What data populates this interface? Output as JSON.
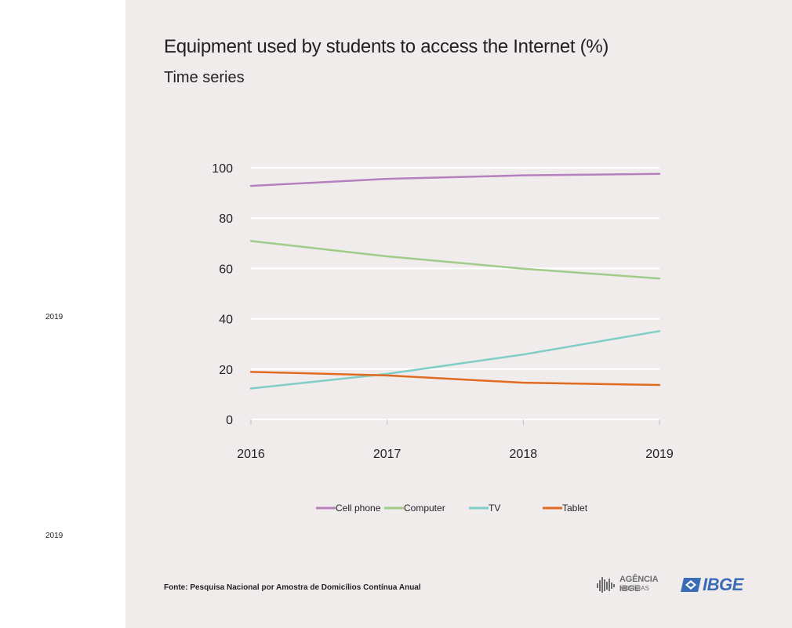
{
  "side_notes": [
    "2019",
    "2019"
  ],
  "chart_data": {
    "type": "line",
    "title": "Equipment used by students to access the Internet (%)",
    "subtitle": "Time series",
    "x": [
      "2016",
      "2017",
      "2018",
      "2019"
    ],
    "ylim": [
      0,
      100
    ],
    "yticks": [
      0,
      20,
      40,
      60,
      80,
      100
    ],
    "grid": true,
    "legend_position": "bottom",
    "series": [
      {
        "name": "Cell phone",
        "color": "#b67fbd",
        "values": [
          92.8,
          95.6,
          97.0,
          97.6
        ]
      },
      {
        "name": "Computer",
        "color": "#9fcc8a",
        "values": [
          70.9,
          64.8,
          59.9,
          56.0
        ]
      },
      {
        "name": "TV",
        "color": "#7ecdc7",
        "values": [
          12.3,
          18.1,
          25.8,
          35.1
        ]
      },
      {
        "name": "Tablet",
        "color": "#e06a1e",
        "values": [
          18.9,
          17.5,
          14.6,
          13.7
        ]
      }
    ]
  },
  "footer": {
    "source": "Fonte: Pesquisa Nacional por Amostra de Domicílios Contínua Anual",
    "agencia_top": "AGÊNCIA IBGE",
    "agencia_bottom": "NOTÍCIAS",
    "ibge_logo": "IBGE"
  }
}
